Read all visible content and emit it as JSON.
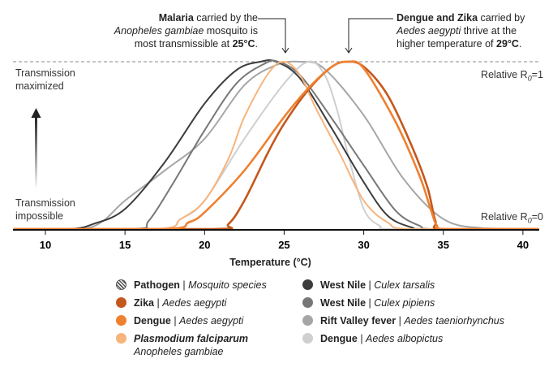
{
  "annotations": {
    "left": {
      "bold": "Malaria",
      "line1_rest": " carried by the",
      "line2": "Anopheles gambiae",
      "line2_rest": " mosquito is",
      "line3": "most transmissible at ",
      "line3_bold": "25°C",
      "line3_end": "."
    },
    "right": {
      "bold": "Dengue and Zika",
      "line1_rest": " carried by",
      "line2": "Aedes aegypti",
      "line2_rest": " thrive at the",
      "line3": "higher temperature of ",
      "line3_bold": "29°C",
      "line3_end": "."
    }
  },
  "labels": {
    "top_left_1": "Transmission",
    "top_left_2": "maximized",
    "bottom_left_1": "Transmission",
    "bottom_left_2": "impossible",
    "top_right": "Relative R",
    "top_right_sub": "0",
    "top_right_val": "=1",
    "bottom_right": "Relative R",
    "bottom_right_sub": "0",
    "bottom_right_val": "=0"
  },
  "chart_data": {
    "type": "line",
    "xlabel": "Temperature (°C)",
    "ylabel": "",
    "xlim": [
      8,
      41
    ],
    "ylim": [
      0,
      1
    ],
    "xticks": [
      10,
      15,
      20,
      25,
      30,
      35,
      40
    ],
    "grid": false,
    "legend_position": "bottom",
    "legend_header": {
      "pathogen": "Pathogen",
      "mosquito": "Mosquito species"
    },
    "series": [
      {
        "name": "Rift Valley fever",
        "mosquito": "Aedes taeniorhynchus",
        "color": "#a6a6a6",
        "points": [
          [
            8,
            0
          ],
          [
            12,
            0
          ],
          [
            13.5,
            0.04
          ],
          [
            15,
            0.17
          ],
          [
            17.5,
            0.35
          ],
          [
            20,
            0.54
          ],
          [
            22.5,
            0.86
          ],
          [
            24.5,
            0.98
          ],
          [
            26,
            1
          ],
          [
            27.5,
            0.96
          ],
          [
            30,
            0.68
          ],
          [
            32.5,
            0.3
          ],
          [
            35,
            0.06
          ],
          [
            37.5,
            0.005
          ],
          [
            41,
            0
          ]
        ]
      },
      {
        "name": "Dengue",
        "mosquito": "Aedes albopictus",
        "color": "#cfcfcf",
        "points": [
          [
            8,
            0
          ],
          [
            17,
            0
          ],
          [
            18.5,
            0.06
          ],
          [
            20,
            0.17
          ],
          [
            22.5,
            0.54
          ],
          [
            25,
            0.87
          ],
          [
            26.5,
            1
          ],
          [
            27.5,
            0.93
          ],
          [
            28.3,
            0.72
          ],
          [
            29,
            0.45
          ],
          [
            30,
            0.12
          ],
          [
            31,
            0.02
          ],
          [
            32,
            0
          ],
          [
            41,
            0
          ]
        ]
      },
      {
        "name": "West Nile",
        "mosquito": "Culex tarsalis",
        "color": "#3c3c3c",
        "points": [
          [
            8,
            0
          ],
          [
            11.5,
            0
          ],
          [
            13,
            0.03
          ],
          [
            15,
            0.12
          ],
          [
            17.5,
            0.4
          ],
          [
            20,
            0.75
          ],
          [
            22,
            0.95
          ],
          [
            23.5,
            1
          ],
          [
            24.5,
            1
          ],
          [
            26,
            0.9
          ],
          [
            28,
            0.6
          ],
          [
            30,
            0.28
          ],
          [
            31.5,
            0.08
          ],
          [
            33,
            0.01
          ],
          [
            34,
            0
          ],
          [
            41,
            0
          ]
        ]
      },
      {
        "name": "West Nile",
        "mosquito": "Culex pipiens",
        "color": "#777777",
        "points": [
          [
            8,
            0
          ],
          [
            15.5,
            0
          ],
          [
            16.5,
            0.05
          ],
          [
            18,
            0.27
          ],
          [
            20,
            0.59
          ],
          [
            22,
            0.87
          ],
          [
            23.8,
            0.99
          ],
          [
            24.6,
            1
          ],
          [
            26,
            0.92
          ],
          [
            28,
            0.66
          ],
          [
            30,
            0.38
          ],
          [
            32,
            0.11
          ],
          [
            33.5,
            0.02
          ],
          [
            34.5,
            0
          ],
          [
            41,
            0
          ]
        ]
      },
      {
        "name": "Plasmodium falciparum",
        "mosquito": "Anopheles gambiae",
        "color": "#f7b47c",
        "points": [
          [
            8,
            0
          ],
          [
            17,
            0
          ],
          [
            18.5,
            0.06
          ],
          [
            20,
            0.17
          ],
          [
            21.5,
            0.42
          ],
          [
            22.5,
            0.67
          ],
          [
            24,
            0.93
          ],
          [
            25,
            1
          ],
          [
            26,
            0.92
          ],
          [
            27,
            0.72
          ],
          [
            28.5,
            0.45
          ],
          [
            30,
            0.17
          ],
          [
            31.5,
            0.04
          ],
          [
            33,
            0
          ],
          [
            41,
            0
          ]
        ]
      },
      {
        "name": "Zika",
        "mosquito": "Aedes aegypti",
        "color": "#c4581c",
        "points": [
          [
            8,
            0
          ],
          [
            20.5,
            0
          ],
          [
            21.5,
            0.03
          ],
          [
            22.5,
            0.17
          ],
          [
            24,
            0.46
          ],
          [
            25,
            0.63
          ],
          [
            26.5,
            0.83
          ],
          [
            28,
            0.97
          ],
          [
            29,
            1
          ],
          [
            30,
            0.97
          ],
          [
            31.5,
            0.8
          ],
          [
            33,
            0.5
          ],
          [
            34,
            0.25
          ],
          [
            34.5,
            0.05
          ],
          [
            35,
            0
          ],
          [
            41,
            0
          ]
        ]
      },
      {
        "name": "Dengue",
        "mosquito": "Aedes aegypti",
        "color": "#ef8030",
        "points": [
          [
            8,
            0
          ],
          [
            17.5,
            0
          ],
          [
            19,
            0.04
          ],
          [
            20,
            0.1
          ],
          [
            22.5,
            0.35
          ],
          [
            25,
            0.67
          ],
          [
            26.5,
            0.84
          ],
          [
            28,
            0.97
          ],
          [
            29,
            1
          ],
          [
            30,
            0.96
          ],
          [
            32,
            0.64
          ],
          [
            33.5,
            0.32
          ],
          [
            34.2,
            0.12
          ],
          [
            34.6,
            0.02
          ],
          [
            35.2,
            0
          ],
          [
            41,
            0
          ]
        ]
      }
    ]
  },
  "legend": {
    "left": [
      {
        "bold": "Pathogen",
        "italic": "Mosquito species",
        "color": "hatched"
      },
      {
        "bold": "Zika",
        "italic": "Aedes aegypti",
        "color": "#c4581c"
      },
      {
        "bold": "Dengue",
        "italic": "Aedes aegypti",
        "color": "#ef8030"
      },
      {
        "bold": "Plasmodium falciparum",
        "italic": "Anopheles gambiae",
        "color": "#f7b47c"
      }
    ],
    "right": [
      {
        "bold": "West Nile",
        "italic": "Culex tarsalis",
        "color": "#3c3c3c"
      },
      {
        "bold": "West Nile",
        "italic": "Culex pipiens",
        "color": "#777777"
      },
      {
        "bold": "Rift Valley fever",
        "italic": "Aedes taeniorhynchus",
        "color": "#a6a6a6"
      },
      {
        "bold": "Dengue",
        "italic": "Aedes albopictus",
        "color": "#cfcfcf"
      }
    ]
  }
}
